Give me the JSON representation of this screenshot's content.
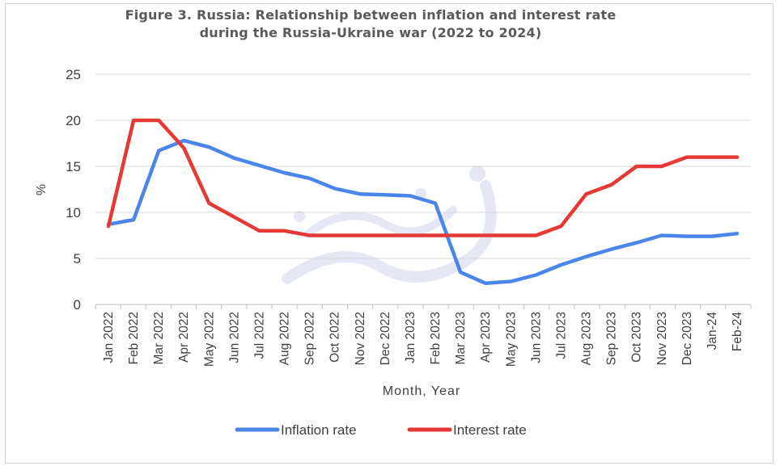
{
  "chart_data": {
    "type": "line",
    "title_line1": "Figure 3. Russia: Relationship between inflation and interest rate",
    "title_line2": "during the Russia-Ukraine war (2022 to 2024)",
    "xlabel": "Month, Year",
    "ylabel": "%",
    "ylim": [
      0,
      25
    ],
    "yticks": [
      0,
      5,
      10,
      15,
      20,
      25
    ],
    "grid": true,
    "legend_position": "bottom",
    "categories": [
      "Jan 2022",
      "Feb 2022",
      "Mar 2022",
      "Apr 2022",
      "May 2022",
      "Jun 2022",
      "Jul 2022",
      "Aug 2022",
      "Sep 2022",
      "Oct 2022",
      "Nov 2022",
      "Dec 2022",
      "Jan 2023",
      "Feb 2023",
      "Mar 2023",
      "Apr 2023",
      "May 2023",
      "Jun 2023",
      "Jul 2023",
      "Aug 2023",
      "Sep 2023",
      "Oct 2023",
      "Nov 2023",
      "Dec 2023",
      "Jan-24",
      "Feb-24"
    ],
    "series": [
      {
        "name": "Inflation rate",
        "color": "#4a86e8",
        "values": [
          8.7,
          9.2,
          16.7,
          17.8,
          17.1,
          15.9,
          15.1,
          14.3,
          13.7,
          12.6,
          12.0,
          11.9,
          11.8,
          11.0,
          3.5,
          2.3,
          2.5,
          3.2,
          4.3,
          5.2,
          6.0,
          6.7,
          7.5,
          7.4,
          7.4,
          7.7
        ]
      },
      {
        "name": "Interest rate",
        "color": "#e53935",
        "values": [
          8.5,
          20,
          20,
          17,
          11,
          9.5,
          8,
          8,
          7.5,
          7.5,
          7.5,
          7.5,
          7.5,
          7.5,
          7.5,
          7.5,
          7.5,
          7.5,
          8.5,
          12,
          13,
          15,
          15,
          16,
          16,
          16
        ]
      }
    ]
  }
}
